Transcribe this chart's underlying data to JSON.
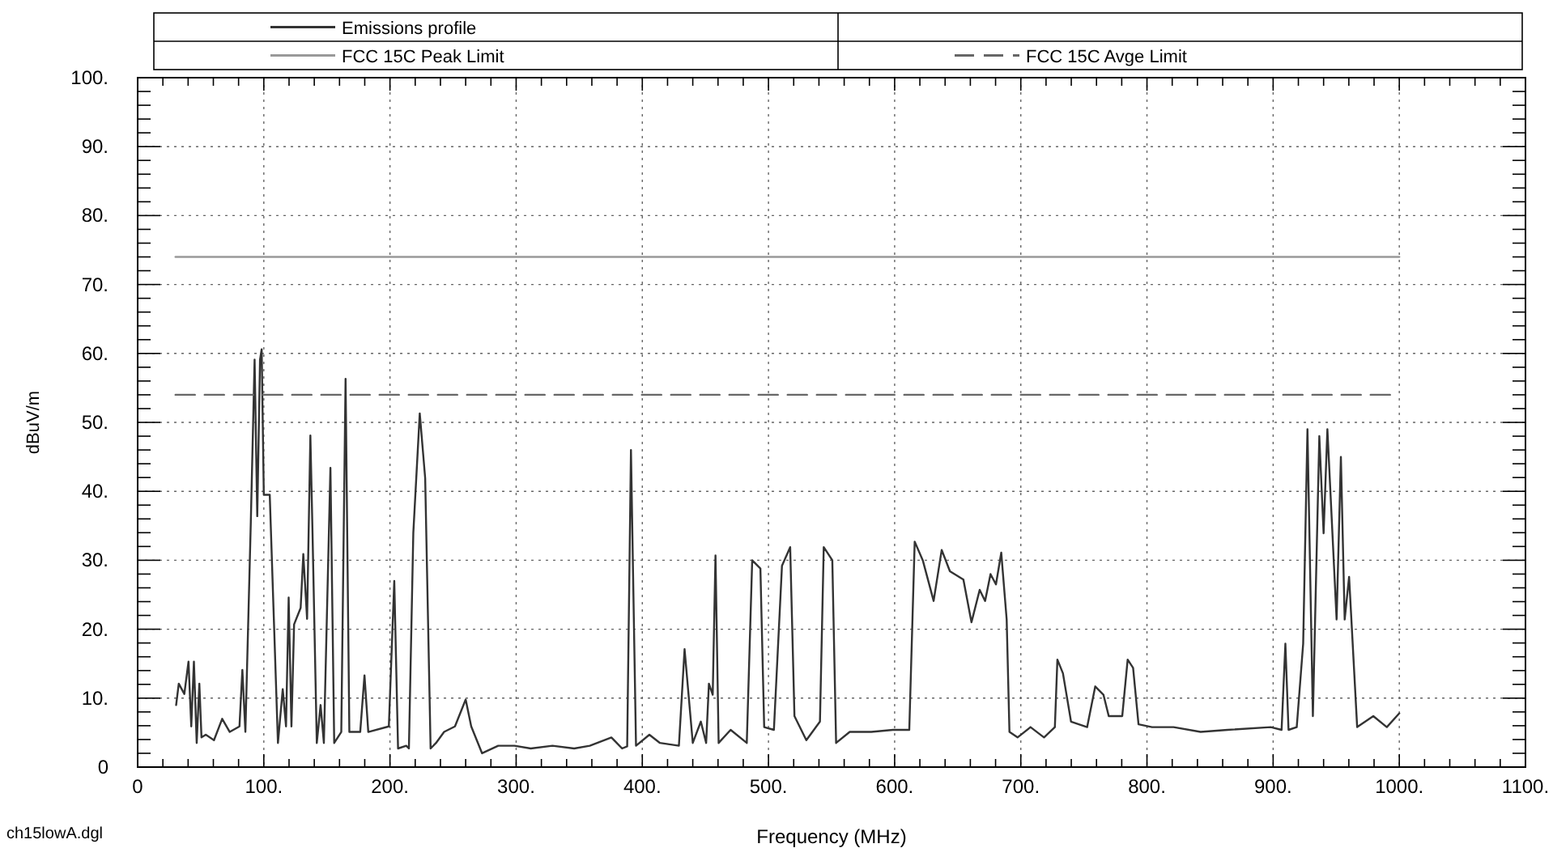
{
  "chart_data": {
    "type": "line",
    "xlabel": "Frequency (MHz)",
    "ylabel": "dBuV/m",
    "annotations": [
      "ch15lowA.dgl"
    ],
    "xlim": [
      0,
      1100
    ],
    "ylim": [
      0,
      100
    ],
    "xticks": [
      0,
      {
        "value": 20,
        "label": null
      },
      {
        "value": 40,
        "label": null
      },
      {
        "value": 60,
        "label": null
      },
      {
        "value": 80,
        "label": null
      },
      {
        "value": 100,
        "label": "100."
      },
      {
        "value": 120,
        "label": null
      },
      {
        "value": 140,
        "label": null
      },
      {
        "value": 160,
        "label": null
      },
      {
        "value": 180,
        "label": null
      },
      {
        "value": 200,
        "label": "200."
      },
      {
        "value": 220,
        "label": null
      },
      {
        "value": 240,
        "label": null
      },
      {
        "value": 260,
        "label": null
      },
      {
        "value": 280,
        "label": null
      },
      {
        "value": 300,
        "label": "300."
      },
      {
        "value": 320,
        "label": null
      },
      {
        "value": 340,
        "label": null
      },
      {
        "value": 360,
        "label": null
      },
      {
        "value": 380,
        "label": null
      },
      {
        "value": 400,
        "label": "400."
      },
      {
        "value": 420,
        "label": null
      },
      {
        "value": 440,
        "label": null
      },
      {
        "value": 460,
        "label": null
      },
      {
        "value": 480,
        "label": null
      },
      {
        "value": 500,
        "label": "500."
      },
      {
        "value": 520,
        "label": null
      },
      {
        "value": 540,
        "label": null
      },
      {
        "value": 560,
        "label": null
      },
      {
        "value": 580,
        "label": null
      },
      {
        "value": 600,
        "label": "600."
      },
      {
        "value": 620,
        "label": null
      },
      {
        "value": 640,
        "label": null
      },
      {
        "value": 660,
        "label": null
      },
      {
        "value": 680,
        "label": null
      },
      {
        "value": 700,
        "label": "700."
      },
      {
        "value": 720,
        "label": null
      },
      {
        "value": 740,
        "label": null
      },
      {
        "value": 760,
        "label": null
      },
      {
        "value": 780,
        "label": null
      },
      {
        "value": 800,
        "label": "800."
      },
      {
        "value": 820,
        "label": null
      },
      {
        "value": 840,
        "label": null
      },
      {
        "value": 860,
        "label": null
      },
      {
        "value": 880,
        "label": null
      },
      {
        "value": 900,
        "label": "900."
      },
      {
        "value": 920,
        "label": null
      },
      {
        "value": 940,
        "label": null
      },
      {
        "value": 960,
        "label": null
      },
      {
        "value": 980,
        "label": null
      },
      {
        "value": 1000,
        "label": "1000."
      },
      {
        "value": 1020,
        "label": null
      },
      {
        "value": 1040,
        "label": null
      },
      {
        "value": 1060,
        "label": null
      },
      {
        "value": 1080,
        "label": null
      },
      {
        "value": 1100,
        "label": "1100."
      }
    ],
    "yticks": [
      0,
      {
        "value": 2,
        "label": null
      },
      {
        "value": 4,
        "label": null
      },
      {
        "value": 6,
        "label": null
      },
      {
        "value": 8,
        "label": null
      },
      {
        "value": 10,
        "label": "10."
      },
      {
        "value": 12,
        "label": null
      },
      {
        "value": 14,
        "label": null
      },
      {
        "value": 16,
        "label": null
      },
      {
        "value": 18,
        "label": null
      },
      {
        "value": 20,
        "label": "20."
      },
      {
        "value": 22,
        "label": null
      },
      {
        "value": 24,
        "label": null
      },
      {
        "value": 26,
        "label": null
      },
      {
        "value": 28,
        "label": null
      },
      {
        "value": 30,
        "label": "30."
      },
      {
        "value": 32,
        "label": null
      },
      {
        "value": 34,
        "label": null
      },
      {
        "value": 36,
        "label": null
      },
      {
        "value": 38,
        "label": null
      },
      {
        "value": 40,
        "label": "40."
      },
      {
        "value": 42,
        "label": null
      },
      {
        "value": 44,
        "label": null
      },
      {
        "value": 46,
        "label": null
      },
      {
        "value": 48,
        "label": null
      },
      {
        "value": 50,
        "label": "50."
      },
      {
        "value": 52,
        "label": null
      },
      {
        "value": 54,
        "label": null
      },
      {
        "value": 56,
        "label": null
      },
      {
        "value": 58,
        "label": null
      },
      {
        "value": 60,
        "label": "60."
      },
      {
        "value": 62,
        "label": null
      },
      {
        "value": 64,
        "label": null
      },
      {
        "value": 66,
        "label": null
      },
      {
        "value": 68,
        "label": null
      },
      {
        "value": 70,
        "label": "70."
      },
      {
        "value": 72,
        "label": null
      },
      {
        "value": 74,
        "label": null
      },
      {
        "value": 76,
        "label": null
      },
      {
        "value": 78,
        "label": null
      },
      {
        "value": 80,
        "label": "80."
      },
      {
        "value": 82,
        "label": null
      },
      {
        "value": 84,
        "label": null
      },
      {
        "value": 86,
        "label": null
      },
      {
        "value": 88,
        "label": null
      },
      {
        "value": 90,
        "label": "90."
      },
      {
        "value": 92,
        "label": null
      },
      {
        "value": 94,
        "label": null
      },
      {
        "value": 96,
        "label": null
      },
      {
        "value": 98,
        "label": null
      },
      {
        "value": 100,
        "label": "100."
      }
    ],
    "grid": true,
    "legend": "top",
    "marker": "none",
    "series": [
      {
        "name": "Emissions profile",
        "color": "#333333",
        "line_style": "solid",
        "x": [
          30.5,
          32.6,
          37,
          40.3,
          42.5,
          44.6,
          46.8,
          48.9,
          50.6,
          54,
          60.5,
          67,
          73,
          80.7,
          83,
          85.4,
          89.7,
          92.7,
          94.8,
          97,
          98.3,
          100,
          104.7,
          111.2,
          115,
          117.6,
          119.7,
          121.9,
          124,
          129.2,
          131.3,
          134.3,
          136.9,
          138.6,
          142,
          145,
          147.6,
          152.8,
          155.8,
          161.4,
          164.8,
          167.8,
          176.4,
          179.8,
          182.8,
          199.1,
          203.4,
          206.4,
          212.9,
          215,
          218.5,
          223.6,
          227.9,
          232.2,
          236.5,
          242.9,
          251.5,
          260,
          264.4,
          273,
          285.8,
          298.7,
          311.6,
          328.8,
          346,
          358.4,
          375.5,
          384,
          388,
          391,
          395,
          405.6,
          414,
          429,
          433.5,
          440,
          446.4,
          450.6,
          452.8,
          455.8,
          458,
          460.5,
          470,
          482.8,
          487.1,
          493.6,
          496.6,
          504.3,
          510.7,
          517.2,
          520.6,
          530,
          540.8,
          543.8,
          550.6,
          553.6,
          564.4,
          581.5,
          598.7,
          611.6,
          615.9,
          622.3,
          630.9,
          637.3,
          643.8,
          654.5,
          660.9,
          667.4,
          671.7,
          676,
          680.3,
          684.5,
          688.8,
          691,
          697.4,
          707.7,
          718.4,
          727,
          729,
          733.4,
          739.8,
          752.6,
          759,
          765.5,
          769.7,
          780.4,
          784.7,
          789,
          793.3,
          804,
          821.1,
          842.5,
          863.9,
          898.1,
          906.7,
          909.7,
          912.2,
          918.7,
          923.8,
          927.2,
          931.5,
          936.6,
          940,
          943,
          950.3,
          953.7,
          956.7,
          960.2,
          966.6,
          979.4,
          990.1,
          1000
        ],
        "values": [
          9,
          12.1,
          10.6,
          15.3,
          5.9,
          15.3,
          3.5,
          12.1,
          4.3,
          4.7,
          3.9,
          7,
          5.1,
          5.9,
          14.1,
          5.1,
          35.6,
          59.1,
          36.4,
          59.1,
          60.6,
          39.5,
          39.5,
          3.5,
          11.3,
          5.9,
          24.6,
          5.9,
          20.7,
          23.1,
          30.9,
          21.5,
          48.1,
          34,
          3.5,
          9,
          3.5,
          43.4,
          3.5,
          5.1,
          56.3,
          5.1,
          5.1,
          13.3,
          5.1,
          5.9,
          27,
          2.7,
          3.1,
          2.7,
          34,
          51.3,
          41.9,
          2.7,
          3.5,
          5.1,
          5.9,
          9.8,
          5.9,
          2,
          3.1,
          3.1,
          2.7,
          3.1,
          2.7,
          3.1,
          4.3,
          2.7,
          3,
          46,
          3.1,
          4.7,
          3.5,
          3.1,
          17.1,
          3.5,
          6.6,
          3.5,
          12.1,
          10.5,
          30.7,
          3.5,
          5.4,
          3.5,
          30,
          28.8,
          5.8,
          5.4,
          29.2,
          31.9,
          7.4,
          3.9,
          6.6,
          31.9,
          30,
          3.5,
          5.1,
          5.1,
          5.4,
          5.4,
          32.7,
          30,
          24.1,
          31.5,
          28.4,
          27.2,
          21,
          25.7,
          24.1,
          28,
          26.5,
          31.1,
          21.4,
          5.1,
          4.3,
          5.8,
          4.3,
          5.8,
          15.6,
          13.6,
          6.6,
          5.8,
          11.7,
          10.5,
          7.4,
          7.4,
          15.6,
          14.4,
          6.2,
          5.8,
          5.8,
          5.1,
          5.4,
          5.8,
          5.4,
          17.9,
          5.4,
          5.8,
          17.9,
          49,
          7.4,
          48,
          33.9,
          49,
          21.4,
          45,
          21.4,
          27.6,
          5.8,
          7.4,
          5.8,
          7.8
        ]
      },
      {
        "name": "FCC 15C Peak Limit",
        "color": "#999999",
        "line_style": "solid",
        "x": [
          30,
          1000
        ],
        "values": [
          74,
          74
        ]
      },
      {
        "name": "FCC 15C Avge Limit",
        "color": "#666666",
        "line_style": "dashed",
        "x": [
          30,
          1000
        ],
        "values": [
          54,
          54
        ]
      }
    ]
  }
}
